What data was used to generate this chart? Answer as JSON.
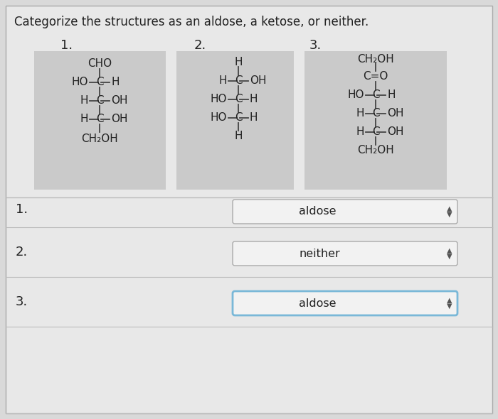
{
  "title": "Categorize the structures as an aldose, a ketose, or neither.",
  "page_bg": "#d9d9d9",
  "content_bg": "#e8e8e8",
  "structure_bg": "#cacaca",
  "answer_bg": "#f2f2f2",
  "answer3_border": "#7ab8d8",
  "text_color": "#222222",
  "line_color": "#444444",
  "divider_color": "#bbbbbb",
  "answers": [
    "aldose",
    "neither",
    "aldose"
  ],
  "struct_num_labels": [
    "1.",
    "2.",
    "3."
  ],
  "answer_num_labels": [
    "1.",
    "2.",
    "3."
  ]
}
